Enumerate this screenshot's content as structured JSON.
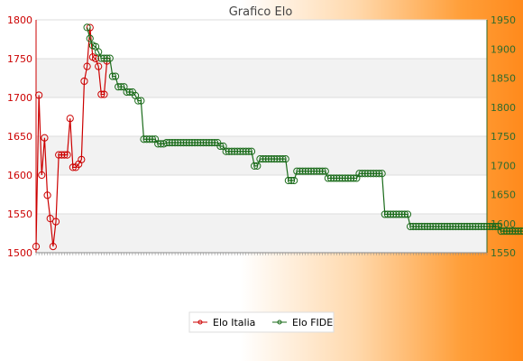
{
  "chart_data": {
    "type": "line",
    "title": "Grafico Elo",
    "xlabel": "",
    "ylabel": "",
    "left_axis": {
      "ylim": [
        1500,
        1800
      ],
      "ticks": [
        1500,
        1550,
        1600,
        1650,
        1700,
        1750,
        1800
      ],
      "color": "#cc0000"
    },
    "right_axis": {
      "ylim": [
        1550,
        1950
      ],
      "ticks": [
        1550,
        1600,
        1650,
        1700,
        1750,
        1800,
        1850,
        1900,
        1950
      ],
      "color": "#2e6b2e"
    },
    "x_count": 160,
    "grid": true,
    "legend_placement": "bottom-center",
    "series": [
      {
        "name": "Elo Italia",
        "axis": "left",
        "color": "#cc0000",
        "x_start": 0,
        "values": [
          1508,
          1703,
          1600,
          1648,
          1574,
          1544,
          1508,
          1540,
          1626,
          1626,
          1626,
          1626,
          1673,
          1610,
          1610,
          1614,
          1620,
          1721,
          1740,
          1790,
          1752,
          1750,
          1740,
          1704,
          1704,
          1747
        ]
      },
      {
        "name": "Elo FIDE",
        "axis": "right",
        "color": "#1a6b1a",
        "x_start": 18,
        "values": [
          1937,
          1918,
          1906,
          1904,
          1895,
          1884,
          1884,
          1884,
          1884,
          1853,
          1853,
          1835,
          1835,
          1835,
          1826,
          1826,
          1826,
          1820,
          1811,
          1811,
          1745,
          1745,
          1745,
          1745,
          1745,
          1737,
          1737,
          1737,
          1739,
          1739,
          1739,
          1739,
          1739,
          1739,
          1739,
          1739,
          1739,
          1739,
          1739,
          1739,
          1739,
          1739,
          1739,
          1739,
          1739,
          1739,
          1739,
          1733,
          1733,
          1724,
          1724,
          1724,
          1724,
          1724,
          1724,
          1724,
          1724,
          1724,
          1724,
          1699,
          1699,
          1711,
          1711,
          1711,
          1711,
          1711,
          1711,
          1711,
          1711,
          1711,
          1711,
          1674,
          1674,
          1674,
          1690,
          1690,
          1690,
          1690,
          1690,
          1690,
          1690,
          1690,
          1690,
          1690,
          1690,
          1678,
          1678,
          1678,
          1678,
          1678,
          1678,
          1678,
          1678,
          1678,
          1678,
          1678,
          1686,
          1686,
          1686,
          1686,
          1686,
          1686,
          1686,
          1686,
          1686,
          1616,
          1616,
          1616,
          1616,
          1616,
          1616,
          1616,
          1616,
          1616,
          1595,
          1595,
          1595,
          1595,
          1595,
          1595,
          1595,
          1595,
          1595,
          1595,
          1595,
          1595,
          1595,
          1595,
          1595,
          1595,
          1595,
          1595,
          1595,
          1595,
          1595,
          1595,
          1595,
          1595,
          1595,
          1595,
          1595,
          1595,
          1595,
          1595,
          1595,
          1595,
          1587,
          1587,
          1587,
          1587,
          1587,
          1587,
          1587,
          1587,
          1587,
          1587,
          1587,
          1587,
          1587,
          1587,
          1587,
          1587,
          1587,
          1587,
          1587
        ]
      }
    ]
  },
  "legend": {
    "items": [
      {
        "label": "Elo Italia",
        "color": "#cc0000"
      },
      {
        "label": "Elo FIDE",
        "color": "#1a6b1a"
      }
    ]
  }
}
